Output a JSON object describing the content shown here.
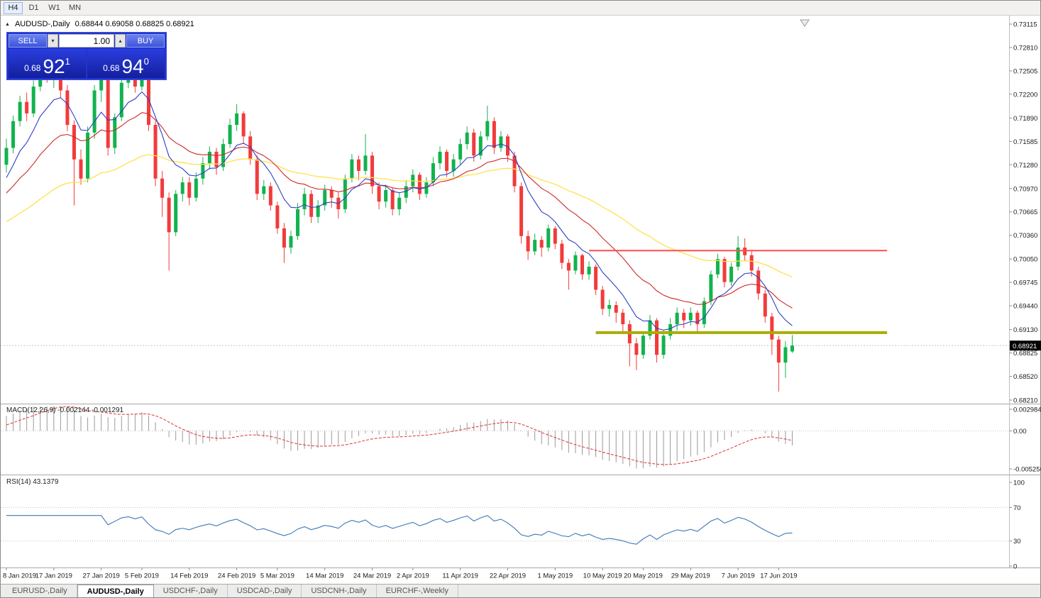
{
  "toolbar": {
    "timeframes": [
      {
        "label": "H4",
        "active": true
      },
      {
        "label": "D1",
        "active": false
      },
      {
        "label": "W1",
        "active": false
      },
      {
        "label": "MN",
        "active": false
      }
    ]
  },
  "header": {
    "symbol_period": "AUDUSD-,Daily",
    "ohlc": "0.68844 0.69058 0.68825 0.68921"
  },
  "trade_panel": {
    "sell_label": "SELL",
    "buy_label": "BUY",
    "volume": "1.00",
    "bid": {
      "prefix": "0.68",
      "big": "92",
      "sup": "1"
    },
    "ask": {
      "prefix": "0.68",
      "big": "94",
      "sup": "0"
    }
  },
  "indicators": {
    "macd_label": "MACD(12,26,9) -0.002144 -0.001291",
    "rsi_label": "RSI(14) 43.1379"
  },
  "price_axis": {
    "ticks": [
      "0.73115",
      "0.72810",
      "0.72505",
      "0.72200",
      "0.71890",
      "0.71585",
      "0.71280",
      "0.70970",
      "0.70665",
      "0.70360",
      "0.70050",
      "0.69745",
      "0.69440",
      "0.69130",
      "0.68825",
      "0.68520",
      "0.68210"
    ],
    "current_price": "0.68921"
  },
  "macd_axis": [
    "0.002984",
    "0.00",
    "-0.005256"
  ],
  "rsi_axis": [
    "100",
    "70",
    "30",
    "0"
  ],
  "tabs": [
    {
      "label": "EURUSD-,Daily",
      "active": false
    },
    {
      "label": "AUDUSD-,Daily",
      "active": true
    },
    {
      "label": "USDCHF-,Daily",
      "active": false
    },
    {
      "label": "USDCAD-,Daily",
      "active": false
    },
    {
      "label": "USDCNH-,Daily",
      "active": false
    },
    {
      "label": "EURCHF-,Weekly",
      "active": false
    }
  ],
  "colors": {
    "up": "#11b34d",
    "down": "#f23b3b",
    "ma_fast": "#2e3fc4",
    "ma_mid": "#cc2929",
    "ma_slow": "#ffe14d",
    "res_line": "#ff4d4d",
    "sup_line": "#a8ad00",
    "macd_hist": "#9a9a9a",
    "macd_signal": "#dd3333",
    "rsi_line": "#3b78b8",
    "price_tag_bg": "#000000",
    "axis_text": "#1a1a1a"
  },
  "chart_data": {
    "type": "candlestick",
    "symbol": "AUDUSD-",
    "timeframe": "Daily",
    "ohlc_current": {
      "open": 0.68844,
      "high": 0.69058,
      "low": 0.68825,
      "close": 0.68921
    },
    "price_range_shown": {
      "top": 0.73115,
      "bottom": 0.6821
    },
    "date_labels": [
      [
        0,
        "8 Jan 2019"
      ],
      [
        7,
        "17 Jan 2019"
      ],
      [
        14,
        "27 Jan 2019"
      ],
      [
        20,
        "5 Feb 2019"
      ],
      [
        27,
        "14 Feb 2019"
      ],
      [
        34,
        "24 Feb 2019"
      ],
      [
        40,
        "5 Mar 2019"
      ],
      [
        47,
        "14 Mar 2019"
      ],
      [
        54,
        "24 Mar 2019"
      ],
      [
        60,
        "2 Apr 2019"
      ],
      [
        67,
        "11 Apr 2019"
      ],
      [
        74,
        "22 Apr 2019"
      ],
      [
        81,
        "1 May 2019"
      ],
      [
        88,
        "10 May 2019"
      ],
      [
        94,
        "20 May 2019"
      ],
      [
        101,
        "29 May 2019"
      ],
      [
        108,
        "7 Jun 2019"
      ],
      [
        114,
        "17 Jun 2019"
      ]
    ],
    "candles": [
      [
        0.7128,
        0.7162,
        0.7118,
        0.715
      ],
      [
        0.715,
        0.7192,
        0.7143,
        0.7185
      ],
      [
        0.7185,
        0.7218,
        0.7178,
        0.721
      ],
      [
        0.721,
        0.7222,
        0.7185,
        0.7195
      ],
      [
        0.7195,
        0.7238,
        0.719,
        0.723
      ],
      [
        0.723,
        0.7262,
        0.7224,
        0.7255
      ],
      [
        0.7255,
        0.7285,
        0.7235,
        0.724
      ],
      [
        0.724,
        0.7258,
        0.7228,
        0.725
      ],
      [
        0.725,
        0.7256,
        0.7215,
        0.7225
      ],
      [
        0.7225,
        0.7232,
        0.7172,
        0.718
      ],
      [
        0.718,
        0.7186,
        0.7075,
        0.7135
      ],
      [
        0.7135,
        0.7148,
        0.7102,
        0.711
      ],
      [
        0.711,
        0.7178,
        0.7105,
        0.717
      ],
      [
        0.717,
        0.7232,
        0.7162,
        0.7225
      ],
      [
        0.7225,
        0.7248,
        0.721,
        0.724
      ],
      [
        0.7242,
        0.7245,
        0.714,
        0.715
      ],
      [
        0.715,
        0.7195,
        0.7142,
        0.719
      ],
      [
        0.719,
        0.724,
        0.7185,
        0.7235
      ],
      [
        0.7235,
        0.7265,
        0.7228,
        0.725
      ],
      [
        0.725,
        0.7255,
        0.7222,
        0.723
      ],
      [
        0.723,
        0.727,
        0.7225,
        0.7255
      ],
      [
        0.7255,
        0.7262,
        0.7172,
        0.718
      ],
      [
        0.718,
        0.7185,
        0.71,
        0.711
      ],
      [
        0.711,
        0.712,
        0.706,
        0.7085
      ],
      [
        0.7085,
        0.7092,
        0.699,
        0.704
      ],
      [
        0.704,
        0.7095,
        0.7035,
        0.709
      ],
      [
        0.709,
        0.7112,
        0.708,
        0.7105
      ],
      [
        0.7105,
        0.7112,
        0.7075,
        0.7085
      ],
      [
        0.7085,
        0.7118,
        0.708,
        0.711
      ],
      [
        0.711,
        0.7138,
        0.7102,
        0.713
      ],
      [
        0.713,
        0.7152,
        0.7122,
        0.7145
      ],
      [
        0.7145,
        0.715,
        0.7115,
        0.7125
      ],
      [
        0.7125,
        0.7162,
        0.712,
        0.7155
      ],
      [
        0.7155,
        0.7188,
        0.715,
        0.718
      ],
      [
        0.718,
        0.7207,
        0.7172,
        0.7195
      ],
      [
        0.7195,
        0.7198,
        0.7155,
        0.7165
      ],
      [
        0.7165,
        0.7172,
        0.7128,
        0.7135
      ],
      [
        0.7135,
        0.714,
        0.7082,
        0.709
      ],
      [
        0.709,
        0.7108,
        0.7082,
        0.71
      ],
      [
        0.71,
        0.7105,
        0.7068,
        0.7075
      ],
      [
        0.7075,
        0.708,
        0.7038,
        0.7045
      ],
      [
        0.7045,
        0.7052,
        0.7,
        0.702
      ],
      [
        0.702,
        0.7042,
        0.7012,
        0.7035
      ],
      [
        0.7035,
        0.7078,
        0.703,
        0.707
      ],
      [
        0.707,
        0.7098,
        0.7062,
        0.709
      ],
      [
        0.709,
        0.7095,
        0.7052,
        0.706
      ],
      [
        0.706,
        0.7082,
        0.7052,
        0.7075
      ],
      [
        0.7075,
        0.7102,
        0.7068,
        0.7095
      ],
      [
        0.7095,
        0.71,
        0.7072,
        0.7085
      ],
      [
        0.7085,
        0.7092,
        0.7058,
        0.707
      ],
      [
        0.707,
        0.7115,
        0.7065,
        0.711
      ],
      [
        0.711,
        0.7142,
        0.7105,
        0.7135
      ],
      [
        0.7135,
        0.714,
        0.7108,
        0.712
      ],
      [
        0.712,
        0.7168,
        0.7115,
        0.714
      ],
      [
        0.714,
        0.7145,
        0.709,
        0.71
      ],
      [
        0.71,
        0.7105,
        0.707,
        0.708
      ],
      [
        0.708,
        0.7102,
        0.7072,
        0.7095
      ],
      [
        0.7095,
        0.7098,
        0.7062,
        0.707
      ],
      [
        0.707,
        0.7092,
        0.7062,
        0.7085
      ],
      [
        0.7085,
        0.7108,
        0.7078,
        0.71
      ],
      [
        0.71,
        0.7122,
        0.7092,
        0.7115
      ],
      [
        0.7115,
        0.7118,
        0.7082,
        0.709
      ],
      [
        0.709,
        0.7112,
        0.7085,
        0.7105
      ],
      [
        0.7105,
        0.7138,
        0.71,
        0.713
      ],
      [
        0.713,
        0.7152,
        0.7122,
        0.7145
      ],
      [
        0.7145,
        0.7148,
        0.7112,
        0.712
      ],
      [
        0.712,
        0.7142,
        0.7112,
        0.7135
      ],
      [
        0.7135,
        0.7162,
        0.7128,
        0.7155
      ],
      [
        0.7155,
        0.7178,
        0.7148,
        0.717
      ],
      [
        0.717,
        0.7175,
        0.7132,
        0.714
      ],
      [
        0.714,
        0.7172,
        0.7135,
        0.7165
      ],
      [
        0.7165,
        0.7205,
        0.716,
        0.7185
      ],
      [
        0.7185,
        0.719,
        0.7142,
        0.715
      ],
      [
        0.715,
        0.7172,
        0.7145,
        0.7165
      ],
      [
        0.7165,
        0.7168,
        0.7132,
        0.714
      ],
      [
        0.714,
        0.7145,
        0.7092,
        0.71
      ],
      [
        0.71,
        0.7105,
        0.7025,
        0.7035
      ],
      [
        0.7035,
        0.7042,
        0.7004,
        0.7015
      ],
      [
        0.7015,
        0.7038,
        0.701,
        0.703
      ],
      [
        0.703,
        0.7035,
        0.7008,
        0.702
      ],
      [
        0.702,
        0.705,
        0.7015,
        0.7045
      ],
      [
        0.7045,
        0.7048,
        0.7018,
        0.7025
      ],
      [
        0.7025,
        0.703,
        0.6992,
        0.7
      ],
      [
        0.7,
        0.7005,
        0.6965,
        0.699
      ],
      [
        0.699,
        0.7015,
        0.6985,
        0.701
      ],
      [
        0.701,
        0.7012,
        0.6978,
        0.6985
      ],
      [
        0.6985,
        0.7002,
        0.6978,
        0.6995
      ],
      [
        0.6995,
        0.6998,
        0.6958,
        0.6965
      ],
      [
        0.6965,
        0.697,
        0.6932,
        0.694
      ],
      [
        0.694,
        0.6952,
        0.693,
        0.6945
      ],
      [
        0.6945,
        0.695,
        0.6922,
        0.6935
      ],
      [
        0.6935,
        0.694,
        0.691,
        0.692
      ],
      [
        0.692,
        0.6925,
        0.6865,
        0.6895
      ],
      [
        0.6895,
        0.6902,
        0.686,
        0.688
      ],
      [
        0.688,
        0.691,
        0.6875,
        0.6905
      ],
      [
        0.6905,
        0.6932,
        0.69,
        0.6925
      ],
      [
        0.6925,
        0.6928,
        0.687,
        0.688
      ],
      [
        0.688,
        0.6912,
        0.6875,
        0.6905
      ],
      [
        0.6905,
        0.6928,
        0.69,
        0.692
      ],
      [
        0.692,
        0.6942,
        0.6912,
        0.6935
      ],
      [
        0.6935,
        0.694,
        0.6915,
        0.6925
      ],
      [
        0.6925,
        0.6942,
        0.6918,
        0.6935
      ],
      [
        0.6935,
        0.6938,
        0.691,
        0.692
      ],
      [
        0.692,
        0.6955,
        0.6915,
        0.695
      ],
      [
        0.695,
        0.699,
        0.6945,
        0.6985
      ],
      [
        0.6985,
        0.7012,
        0.698,
        0.7005
      ],
      [
        0.7005,
        0.7008,
        0.6968,
        0.6975
      ],
      [
        0.6975,
        0.7,
        0.697,
        0.6995
      ],
      [
        0.6995,
        0.7035,
        0.699,
        0.702
      ],
      [
        0.702,
        0.7032,
        0.7002,
        0.701
      ],
      [
        0.701,
        0.7015,
        0.6982,
        0.699
      ],
      [
        0.699,
        0.6995,
        0.6952,
        0.696
      ],
      [
        0.696,
        0.6965,
        0.6922,
        0.693
      ],
      [
        0.693,
        0.6935,
        0.688,
        0.69
      ],
      [
        0.69,
        0.6905,
        0.6832,
        0.687
      ],
      [
        0.687,
        0.6898,
        0.685,
        0.689
      ],
      [
        0.68844,
        0.69058,
        0.68825,
        0.68921
      ]
    ],
    "hlines": [
      {
        "name": "resistance",
        "price": 0.7016,
        "from_bar": 86,
        "to_bar": 130,
        "color_key": "res_line",
        "width": 2
      },
      {
        "name": "support",
        "price": 0.6909,
        "from_bar": 87,
        "to_bar": 130,
        "color_key": "sup_line",
        "width": 4
      }
    ],
    "macd": {
      "fast": 12,
      "slow": 26,
      "signal": 9,
      "value": -0.002144,
      "signal_value": -0.001291,
      "scale": {
        "max": 0.002984,
        "min": -0.005256
      }
    },
    "rsi": {
      "period": 14,
      "value": 43.1379,
      "levels": [
        70,
        30
      ],
      "scale": {
        "max": 100,
        "min": 0
      }
    }
  }
}
